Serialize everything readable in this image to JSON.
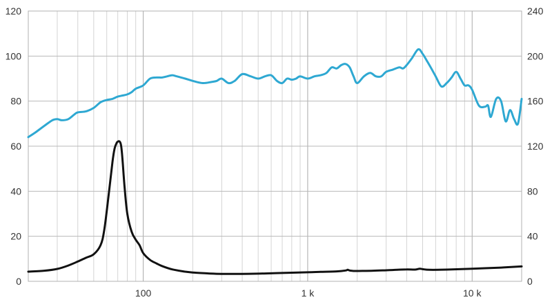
{
  "chart_data": {
    "type": "line",
    "x_scale": "log",
    "xlim": [
      20,
      20000
    ],
    "ylim_left": [
      0,
      120
    ],
    "ylim_right": [
      0,
      240
    ],
    "grid": true,
    "x_tick_labels": [
      {
        "value": 100,
        "label": "100"
      },
      {
        "value": 1000,
        "label": "1 k"
      },
      {
        "value": 10000,
        "label": "10 k"
      }
    ],
    "y_left_ticks": [
      0,
      20,
      40,
      60,
      80,
      100,
      120
    ],
    "y_right_ticks": [
      0,
      40,
      80,
      120,
      160,
      200,
      240
    ],
    "series": [
      {
        "axis": "left",
        "color": "#2ea8d2",
        "x": [
          20,
          22,
          25,
          28,
          30,
          32,
          35,
          38,
          40,
          45,
          50,
          55,
          60,
          65,
          70,
          75,
          80,
          85,
          90,
          100,
          110,
          120,
          130,
          140,
          150,
          160,
          180,
          200,
          230,
          260,
          280,
          300,
          330,
          360,
          400,
          450,
          500,
          550,
          600,
          650,
          700,
          750,
          800,
          850,
          900,
          1000,
          1100,
          1200,
          1300,
          1400,
          1500,
          1600,
          1700,
          1800,
          1900,
          2000,
          2200,
          2400,
          2600,
          2800,
          3000,
          3300,
          3600,
          3800,
          4000,
          4300,
          4700,
          5000,
          5300,
          5600,
          6000,
          6500,
          7000,
          7500,
          8000,
          8500,
          9000,
          9500,
          10000,
          11000,
          12000,
          12500,
          13000,
          14000,
          15000,
          16000,
          17000,
          18000,
          19000,
          20000
        ],
        "y": [
          64,
          66,
          69,
          71.5,
          72,
          71.5,
          72,
          74,
          75,
          75.5,
          77,
          79.5,
          80.5,
          81,
          82,
          82.5,
          83,
          84,
          85.5,
          87,
          90,
          90.5,
          90.5,
          91,
          91.5,
          91,
          90,
          89,
          88,
          88.5,
          89,
          90,
          88,
          89,
          92,
          91,
          90,
          91,
          91.5,
          89,
          88,
          90,
          89.5,
          90,
          91,
          90,
          91,
          91.5,
          92.5,
          95,
          94.5,
          96,
          96.5,
          95,
          91,
          88,
          91,
          92.5,
          91,
          91,
          93,
          94,
          95,
          94.5,
          96,
          99,
          103,
          101,
          98,
          95,
          91,
          86.5,
          88,
          90.5,
          93,
          90,
          87,
          87,
          85,
          78,
          77.5,
          78,
          73,
          81,
          80,
          71,
          76,
          72,
          70,
          81
        ]
      },
      {
        "axis": "left",
        "color": "#111111",
        "x": [
          20,
          25,
          30,
          35,
          40,
          45,
          50,
          55,
          58,
          62,
          65,
          67,
          69,
          70,
          71,
          72,
          73,
          74,
          75,
          77,
          80,
          85,
          90,
          95,
          100,
          110,
          120,
          130,
          150,
          180,
          200,
          250,
          300,
          400,
          500,
          700,
          1000,
          1200,
          1500,
          1700,
          1750,
          1800,
          1900,
          2000,
          2500,
          3000,
          3500,
          4000,
          4500,
          4800,
          5000,
          5500,
          7000,
          10000,
          15000,
          20000
        ],
        "y": [
          4.3,
          4.7,
          5.5,
          7,
          8.8,
          10.5,
          12,
          16,
          23,
          40,
          53,
          59,
          61.5,
          62,
          62.2,
          62,
          61,
          58,
          53,
          42,
          30,
          22,
          18.5,
          16,
          12.5,
          9.5,
          8,
          6.8,
          5.3,
          4.3,
          3.9,
          3.5,
          3.3,
          3.3,
          3.4,
          3.7,
          4,
          4.2,
          4.4,
          4.8,
          5.1,
          4.8,
          4.6,
          4.6,
          4.7,
          4.9,
          5.1,
          5.3,
          5.2,
          5.6,
          5.4,
          5.1,
          5.2,
          5.6,
          6.1,
          6.6
        ]
      }
    ]
  }
}
